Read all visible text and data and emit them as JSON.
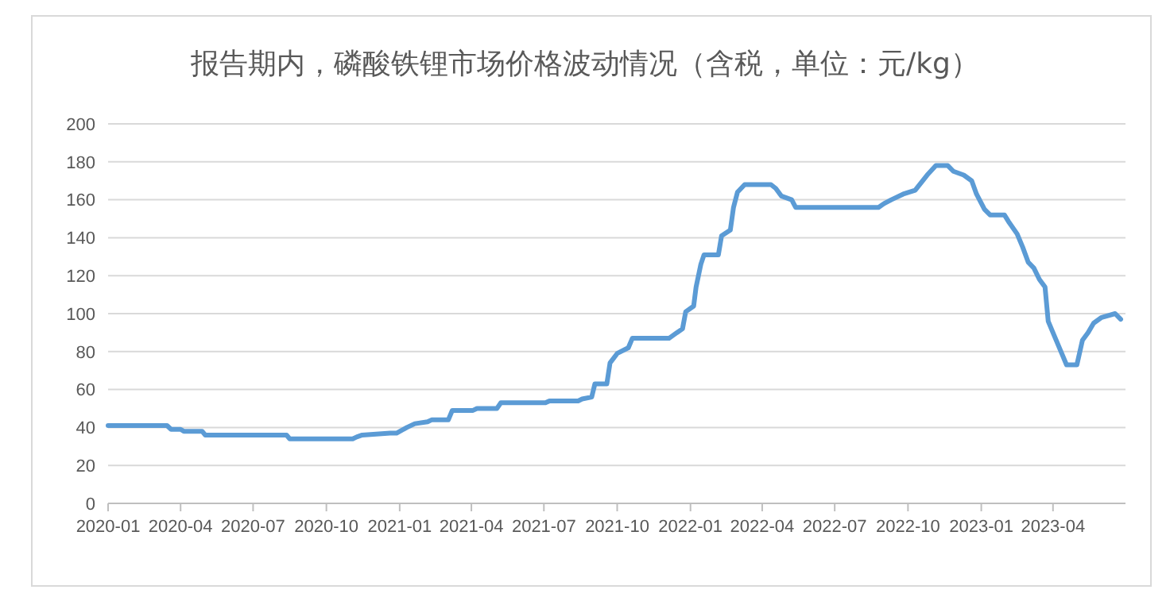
{
  "chart_data": {
    "type": "line",
    "title": "报告期内，磷酸铁锂市场价格波动情况（含税，单位：元/kg）",
    "xlim": [
      "2020-01-01",
      "2023-07-01"
    ],
    "xticks": [
      "2020-01",
      "2020-04",
      "2020-07",
      "2020-10",
      "2021-01",
      "2021-04",
      "2021-07",
      "2021-10",
      "2022-01",
      "2022-04",
      "2022-07",
      "2022-10",
      "2023-01",
      "2023-04"
    ],
    "ylim": [
      0,
      200
    ],
    "yticks": [
      0,
      20,
      40,
      60,
      80,
      100,
      120,
      140,
      160,
      180,
      200
    ],
    "grid": "y",
    "marker": "none",
    "line_style": "solid",
    "series": [
      {
        "color": "#5b9bd5",
        "x": [
          "2020-01-01",
          "2020-03-15",
          "2020-03-20",
          "2020-04-01",
          "2020-04-05",
          "2020-04-28",
          "2020-05-02",
          "2020-08-12",
          "2020-08-16",
          "2020-11-03",
          "2020-11-08",
          "2020-11-15",
          "2020-12-20",
          "2020-12-28",
          "2021-01-10",
          "2021-01-20",
          "2021-02-05",
          "2021-02-10",
          "2021-03-03",
          "2021-03-08",
          "2021-04-03",
          "2021-04-08",
          "2021-05-03",
          "2021-05-08",
          "2021-07-03",
          "2021-07-08",
          "2021-08-13",
          "2021-08-18",
          "2021-08-30",
          "2021-09-03",
          "2021-09-18",
          "2021-09-22",
          "2021-10-01",
          "2021-10-15",
          "2021-10-20",
          "2021-12-05",
          "2021-12-15",
          "2021-12-22",
          "2021-12-26",
          "2022-01-05",
          "2022-01-08",
          "2022-01-14",
          "2022-01-18",
          "2022-02-05",
          "2022-02-09",
          "2022-02-20",
          "2022-02-24",
          "2022-03-01",
          "2022-03-10",
          "2022-04-12",
          "2022-04-18",
          "2022-04-25",
          "2022-05-08",
          "2022-05-13",
          "2022-08-25",
          "2022-09-01",
          "2022-09-10",
          "2022-09-25",
          "2022-10-10",
          "2022-10-25",
          "2022-11-05",
          "2022-11-20",
          "2022-11-27",
          "2022-12-10",
          "2022-12-20",
          "2022-12-26",
          "2023-01-05",
          "2023-01-12",
          "2023-01-30",
          "2023-02-05",
          "2023-02-15",
          "2023-02-22",
          "2023-03-01",
          "2023-03-08",
          "2023-03-15",
          "2023-03-22",
          "2023-03-26",
          "2023-04-02",
          "2023-04-12",
          "2023-04-18",
          "2023-05-01",
          "2023-05-08",
          "2023-05-15",
          "2023-05-22",
          "2023-06-01",
          "2023-06-18",
          "2023-06-25"
        ],
        "values": [
          41,
          41,
          39,
          39,
          38,
          38,
          36,
          36,
          34,
          34,
          35,
          36,
          37,
          37,
          40,
          42,
          43,
          44,
          44,
          49,
          49,
          50,
          50,
          53,
          53,
          54,
          54,
          55,
          56,
          63,
          63,
          74,
          79,
          82,
          87,
          87,
          90,
          92,
          101,
          104,
          114,
          126,
          131,
          131,
          141,
          144,
          156,
          164,
          168,
          168,
          166,
          162,
          160,
          156,
          156,
          158,
          160,
          163,
          165,
          173,
          178,
          178,
          175,
          173,
          170,
          163,
          155,
          152,
          152,
          148,
          142,
          135,
          127,
          124,
          118,
          114,
          96,
          89,
          79,
          73,
          73,
          86,
          90,
          95,
          98,
          100,
          97
        ]
      }
    ]
  }
}
